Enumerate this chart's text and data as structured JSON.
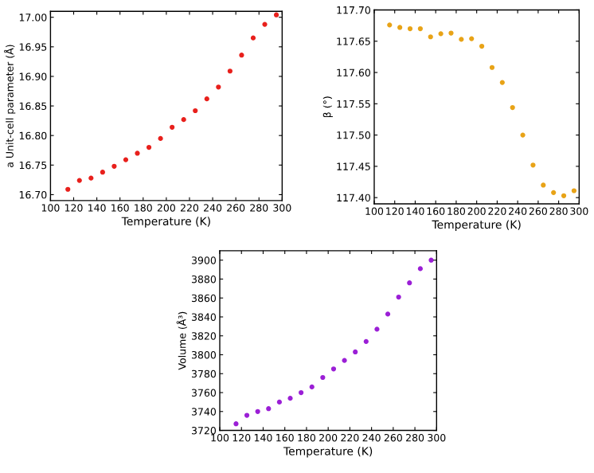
{
  "chart_data": [
    {
      "type": "scatter",
      "xlabel": "Temperature (K)",
      "ylabel": "a Unit-cell parameter (Å)",
      "x": [
        115,
        125,
        135,
        145,
        155,
        165,
        175,
        185,
        195,
        205,
        215,
        225,
        235,
        245,
        255,
        265,
        275,
        285,
        295
      ],
      "series": [
        {
          "color": "#e8201c",
          "values": [
            16.709,
            16.724,
            16.728,
            16.738,
            16.748,
            16.759,
            16.77,
            16.78,
            16.795,
            16.814,
            16.827,
            16.842,
            16.862,
            16.882,
            16.909,
            16.936,
            16.965,
            16.988,
            17.004
          ]
        }
      ],
      "xlim": [
        100,
        300
      ],
      "xticks": [
        100,
        120,
        140,
        160,
        180,
        200,
        220,
        240,
        260,
        280,
        300
      ],
      "ylim": [
        16.69,
        17.01
      ],
      "yticks": [
        {
          "value": 16.7,
          "label": "16.70"
        },
        {
          "value": 16.75,
          "label": "16.75"
        },
        {
          "value": 16.8,
          "label": "16.80"
        },
        {
          "value": 16.85,
          "label": "16.85"
        },
        {
          "value": 16.9,
          "label": "16.90"
        },
        {
          "value": 16.95,
          "label": "16.95"
        },
        {
          "value": 17.0,
          "label": "17.00"
        }
      ],
      "marker": "circle",
      "grid": false,
      "legend": false
    },
    {
      "type": "scatter",
      "xlabel": "Temperature (K)",
      "ylabel": "β (°)",
      "x": [
        115,
        125,
        135,
        145,
        155,
        165,
        175,
        185,
        195,
        205,
        215,
        225,
        235,
        245,
        255,
        265,
        275,
        285,
        295
      ],
      "series": [
        {
          "color": "#e8a317",
          "values": [
            117.676,
            117.672,
            117.67,
            117.67,
            117.657,
            117.662,
            117.663,
            117.653,
            117.654,
            117.642,
            117.608,
            117.584,
            117.544,
            117.5,
            117.452,
            117.42,
            117.408,
            117.403,
            117.411
          ]
        }
      ],
      "xlim": [
        100,
        300
      ],
      "xticks": [
        100,
        120,
        140,
        160,
        180,
        200,
        220,
        240,
        260,
        280,
        300
      ],
      "ylim": [
        117.39,
        117.7
      ],
      "yticks": [
        {
          "value": 117.4,
          "label": "117.40"
        },
        {
          "value": 117.45,
          "label": "117.45"
        },
        {
          "value": 117.5,
          "label": "117.50"
        },
        {
          "value": 117.55,
          "label": "117.55"
        },
        {
          "value": 117.6,
          "label": "117.60"
        },
        {
          "value": 117.65,
          "label": "117.65"
        },
        {
          "value": 117.7,
          "label": "117.70"
        }
      ],
      "marker": "circle",
      "grid": false,
      "legend": false
    },
    {
      "type": "scatter",
      "xlabel": "Temperature (K)",
      "ylabel": "Volume (Å³)",
      "x": [
        115,
        125,
        135,
        145,
        155,
        165,
        175,
        185,
        195,
        205,
        215,
        225,
        235,
        245,
        255,
        265,
        275,
        285,
        295
      ],
      "series": [
        {
          "color": "#9b1fd6",
          "values": [
            3727,
            3736,
            3740,
            3743,
            3750,
            3754,
            3760,
            3766,
            3776,
            3785,
            3794,
            3803,
            3814,
            3827,
            3843,
            3861,
            3876,
            3891,
            3900
          ]
        }
      ],
      "xlim": [
        100,
        300
      ],
      "xticks": [
        100,
        120,
        140,
        160,
        180,
        200,
        220,
        240,
        260,
        280,
        300
      ],
      "ylim": [
        3720,
        3910
      ],
      "yticks": [
        3720,
        3740,
        3760,
        3780,
        3800,
        3820,
        3840,
        3860,
        3880,
        3900
      ],
      "marker": "circle",
      "grid": false,
      "legend": false
    }
  ]
}
